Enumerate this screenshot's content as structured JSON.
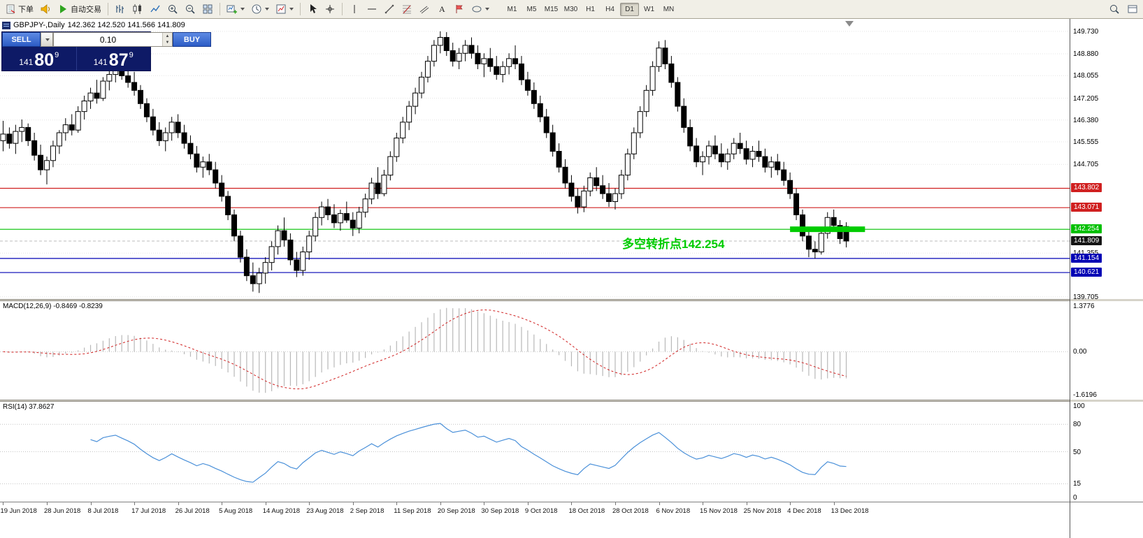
{
  "toolbar": {
    "new_order_label": "下单",
    "autotrade_label": "自动交易",
    "timeframes": [
      "M1",
      "M5",
      "M15",
      "M30",
      "H1",
      "H4",
      "D1",
      "W1",
      "MN"
    ],
    "active_timeframe": "D1"
  },
  "chart": {
    "symbol_title": "GBPJPY-,Daily",
    "ohlc_text": "142.362 142.520 141.566 141.809",
    "trade_panel": {
      "sell_label": "SELL",
      "buy_label": "BUY",
      "volume": "0.10",
      "bid": {
        "prefix": "141",
        "big": "80",
        "sup": "9"
      },
      "ask": {
        "prefix": "141",
        "big": "87",
        "sup": "9"
      }
    },
    "annotation": {
      "text": "多空转折点142.254",
      "color": "#00cc00"
    },
    "levels": [
      {
        "price": 143.802,
        "color": "#d02020"
      },
      {
        "price": 143.071,
        "color": "#d02020"
      },
      {
        "price": 142.254,
        "color": "#00c000"
      },
      {
        "price": 141.154,
        "color": "#0000b4"
      },
      {
        "price": 140.621,
        "color": "#0000b4"
      }
    ],
    "trend_segment": {
      "price": 142.254,
      "bar_start": 126,
      "bar_end": 138,
      "color": "#00cc00",
      "width": 8
    },
    "current_price": 141.809,
    "axis_ticks": [
      149.73,
      148.88,
      148.055,
      147.205,
      146.38,
      145.555,
      144.705,
      141.355,
      139.705
    ],
    "price_max": 150.2,
    "price_min": 139.62
  },
  "macd": {
    "header": "MACD(12,26,9) -0.8469 -0.8239",
    "params": [
      12,
      26,
      9
    ],
    "axis_ticks": [
      "1.3776",
      "0.00",
      "-1.6196"
    ],
    "signal_color": "#d02020",
    "histogram_color": "#b8b8b8"
  },
  "rsi": {
    "header": "RSI(14) 37.8627",
    "period": 14,
    "axis_ticks": [
      100,
      80,
      50,
      15,
      0
    ],
    "levels": [
      80,
      50,
      15
    ],
    "line_color": "#4a90d9"
  },
  "chart_data": {
    "type": "candlestick",
    "symbol": "GBPJPY",
    "timeframe": "Daily",
    "x_label_step": 7,
    "x_labels": [
      "19 Jun 2018",
      "28 Jun 2018",
      "8 Jul 2018",
      "17 Jul 2018",
      "26 Jul 2018",
      "5 Aug 2018",
      "14 Aug 2018",
      "23 Aug 2018",
      "2 Sep 2018",
      "11 Sep 2018",
      "20 Sep 2018",
      "30 Sep 2018",
      "9 Oct 2018",
      "18 Oct 2018",
      "28 Oct 2018",
      "6 Nov 2018",
      "15 Nov 2018",
      "25 Nov 2018",
      "4 Dec 2018",
      "13 Dec 2018"
    ],
    "candles": [
      [
        145.6,
        146.35,
        145.2,
        145.85
      ],
      [
        145.85,
        146.1,
        145.3,
        145.5
      ],
      [
        145.5,
        146.2,
        145.1,
        145.95
      ],
      [
        145.95,
        146.4,
        145.55,
        146.1
      ],
      [
        146.1,
        146.25,
        145.4,
        145.6
      ],
      [
        145.6,
        145.9,
        144.85,
        145.05
      ],
      [
        145.05,
        145.45,
        144.3,
        144.5
      ],
      [
        144.5,
        145.0,
        143.95,
        144.85
      ],
      [
        144.85,
        145.6,
        144.6,
        145.4
      ],
      [
        145.4,
        146.0,
        145.1,
        145.9
      ],
      [
        145.9,
        146.45,
        145.6,
        146.2
      ],
      [
        146.2,
        146.6,
        145.8,
        146.0
      ],
      [
        146.0,
        146.9,
        145.9,
        146.7
      ],
      [
        146.7,
        147.3,
        146.4,
        147.1
      ],
      [
        147.1,
        147.6,
        146.8,
        147.4
      ],
      [
        147.4,
        147.9,
        147.0,
        147.2
      ],
      [
        147.2,
        148.0,
        147.1,
        147.85
      ],
      [
        147.85,
        148.3,
        147.5,
        148.1
      ],
      [
        148.1,
        148.55,
        147.8,
        148.3
      ],
      [
        148.3,
        148.6,
        147.9,
        148.05
      ],
      [
        148.05,
        148.45,
        147.6,
        147.8
      ],
      [
        147.8,
        148.2,
        147.3,
        147.5
      ],
      [
        147.5,
        147.7,
        146.8,
        147.0
      ],
      [
        147.0,
        147.2,
        146.3,
        146.5
      ],
      [
        146.5,
        146.8,
        145.8,
        146.0
      ],
      [
        146.0,
        146.3,
        145.4,
        145.6
      ],
      [
        145.6,
        146.1,
        145.2,
        145.9
      ],
      [
        145.9,
        146.5,
        145.6,
        146.3
      ],
      [
        146.3,
        146.6,
        145.7,
        145.9
      ],
      [
        145.9,
        146.2,
        145.3,
        145.5
      ],
      [
        145.5,
        145.8,
        144.9,
        145.1
      ],
      [
        145.1,
        145.4,
        144.4,
        144.6
      ],
      [
        144.6,
        145.0,
        144.2,
        144.8
      ],
      [
        144.8,
        145.1,
        144.3,
        144.5
      ],
      [
        144.5,
        144.8,
        143.8,
        144.0
      ],
      [
        144.0,
        144.3,
        143.3,
        143.5
      ],
      [
        143.5,
        143.7,
        142.6,
        142.8
      ],
      [
        142.8,
        143.0,
        141.8,
        142.0
      ],
      [
        142.0,
        142.2,
        141.0,
        141.2
      ],
      [
        141.2,
        141.5,
        140.3,
        140.5
      ],
      [
        140.5,
        141.0,
        139.9,
        140.2
      ],
      [
        140.2,
        140.8,
        139.85,
        140.6
      ],
      [
        140.6,
        141.2,
        140.2,
        141.0
      ],
      [
        141.0,
        141.8,
        140.7,
        141.6
      ],
      [
        141.6,
        142.4,
        141.3,
        142.2
      ],
      [
        142.2,
        142.7,
        141.6,
        141.85
      ],
      [
        141.85,
        142.1,
        140.9,
        141.1
      ],
      [
        141.1,
        141.4,
        140.45,
        140.7
      ],
      [
        140.7,
        141.6,
        140.5,
        141.4
      ],
      [
        141.4,
        142.2,
        141.1,
        142.0
      ],
      [
        142.0,
        142.9,
        141.8,
        142.7
      ],
      [
        142.7,
        143.3,
        142.4,
        143.1
      ],
      [
        143.1,
        143.4,
        142.6,
        142.8
      ],
      [
        142.8,
        143.2,
        142.3,
        142.5
      ],
      [
        142.5,
        143.0,
        142.2,
        142.85
      ],
      [
        142.85,
        143.3,
        142.5,
        142.6
      ],
      [
        142.6,
        142.9,
        142.0,
        142.3
      ],
      [
        142.3,
        143.1,
        142.1,
        142.9
      ],
      [
        142.9,
        143.6,
        142.7,
        143.4
      ],
      [
        143.4,
        144.2,
        143.2,
        144.0
      ],
      [
        144.0,
        144.6,
        143.4,
        143.6
      ],
      [
        143.6,
        144.5,
        143.5,
        144.3
      ],
      [
        144.3,
        145.2,
        144.1,
        145.0
      ],
      [
        145.0,
        145.9,
        144.8,
        145.7
      ],
      [
        145.7,
        146.5,
        145.5,
        146.3
      ],
      [
        146.3,
        147.1,
        146.0,
        146.9
      ],
      [
        146.9,
        147.6,
        146.6,
        147.4
      ],
      [
        147.4,
        148.2,
        147.2,
        148.0
      ],
      [
        148.0,
        148.8,
        147.8,
        148.6
      ],
      [
        148.6,
        149.4,
        148.4,
        149.2
      ],
      [
        149.2,
        149.73,
        148.9,
        149.5
      ],
      [
        149.5,
        149.7,
        148.8,
        149.0
      ],
      [
        149.0,
        149.3,
        148.4,
        148.6
      ],
      [
        148.6,
        149.1,
        148.3,
        148.9
      ],
      [
        148.9,
        149.4,
        148.6,
        149.2
      ],
      [
        149.2,
        149.5,
        148.7,
        148.9
      ],
      [
        148.9,
        149.2,
        148.3,
        148.5
      ],
      [
        148.5,
        148.9,
        148.0,
        148.7
      ],
      [
        148.7,
        149.1,
        148.2,
        148.4
      ],
      [
        148.4,
        148.8,
        147.9,
        148.1
      ],
      [
        148.1,
        148.6,
        147.8,
        148.4
      ],
      [
        148.4,
        148.9,
        148.1,
        148.7
      ],
      [
        148.7,
        149.2,
        148.3,
        148.5
      ],
      [
        148.5,
        148.8,
        147.7,
        147.9
      ],
      [
        147.9,
        148.2,
        147.3,
        147.5
      ],
      [
        147.5,
        147.8,
        146.8,
        147.0
      ],
      [
        147.0,
        147.3,
        146.3,
        146.5
      ],
      [
        146.5,
        146.8,
        145.7,
        145.9
      ],
      [
        145.9,
        146.2,
        145.0,
        145.2
      ],
      [
        145.2,
        145.5,
        144.4,
        144.6
      ],
      [
        144.6,
        144.9,
        143.8,
        144.0
      ],
      [
        144.0,
        144.3,
        143.3,
        143.5
      ],
      [
        143.5,
        143.8,
        142.85,
        143.1
      ],
      [
        143.1,
        143.9,
        142.9,
        143.7
      ],
      [
        143.7,
        144.4,
        143.5,
        144.2
      ],
      [
        144.2,
        144.6,
        143.7,
        143.9
      ],
      [
        143.9,
        144.3,
        143.4,
        143.6
      ],
      [
        143.6,
        144.0,
        143.1,
        143.3
      ],
      [
        143.3,
        143.8,
        143.0,
        143.6
      ],
      [
        143.6,
        144.5,
        143.4,
        144.3
      ],
      [
        144.3,
        145.3,
        144.1,
        145.1
      ],
      [
        145.1,
        146.1,
        144.9,
        145.9
      ],
      [
        145.9,
        146.9,
        145.7,
        146.7
      ],
      [
        146.7,
        147.7,
        146.5,
        147.5
      ],
      [
        147.5,
        148.6,
        147.3,
        148.4
      ],
      [
        148.4,
        149.35,
        148.2,
        149.1
      ],
      [
        149.1,
        149.4,
        148.3,
        148.5
      ],
      [
        148.5,
        148.8,
        147.6,
        147.8
      ],
      [
        147.8,
        148.0,
        146.7,
        146.9
      ],
      [
        146.9,
        147.2,
        145.9,
        146.1
      ],
      [
        146.1,
        146.4,
        145.2,
        145.4
      ],
      [
        145.4,
        145.7,
        144.6,
        144.8
      ],
      [
        144.8,
        145.2,
        144.3,
        145.0
      ],
      [
        145.0,
        145.6,
        144.7,
        145.4
      ],
      [
        145.4,
        145.8,
        144.9,
        145.1
      ],
      [
        145.1,
        145.5,
        144.6,
        144.8
      ],
      [
        144.8,
        145.3,
        144.5,
        145.1
      ],
      [
        145.1,
        145.7,
        144.9,
        145.5
      ],
      [
        145.5,
        145.9,
        145.1,
        145.3
      ],
      [
        145.3,
        145.6,
        144.7,
        144.9
      ],
      [
        144.9,
        145.4,
        144.6,
        145.2
      ],
      [
        145.2,
        145.6,
        144.8,
        145.0
      ],
      [
        145.0,
        145.3,
        144.4,
        144.6
      ],
      [
        144.6,
        145.0,
        144.2,
        144.8
      ],
      [
        144.8,
        145.1,
        144.3,
        144.5
      ],
      [
        144.5,
        144.8,
        143.9,
        144.1
      ],
      [
        144.1,
        144.4,
        143.4,
        143.6
      ],
      [
        143.6,
        143.8,
        142.6,
        142.8
      ],
      [
        142.8,
        143.0,
        141.8,
        142.0
      ],
      [
        142.0,
        142.2,
        141.2,
        141.5
      ],
      [
        141.5,
        141.8,
        141.15,
        141.4
      ],
      [
        141.4,
        142.3,
        141.3,
        142.1
      ],
      [
        142.1,
        142.9,
        141.9,
        142.7
      ],
      [
        142.7,
        143.0,
        142.2,
        142.4
      ],
      [
        142.4,
        142.6,
        141.7,
        141.9
      ],
      [
        142.36,
        142.52,
        141.57,
        141.81
      ]
    ]
  }
}
